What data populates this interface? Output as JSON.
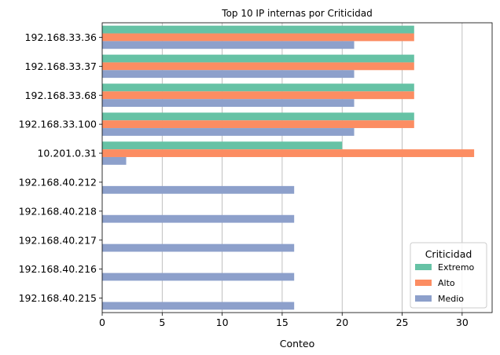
{
  "chart_data": {
    "type": "bar",
    "orientation": "horizontal",
    "title": "Top 10 IP internas por Criticidad",
    "xlabel": "Conteo",
    "ylabel": "",
    "xlim": [
      0,
      32.5
    ],
    "xticks": [
      0,
      5,
      10,
      15,
      20,
      25,
      30
    ],
    "grid": "vertical",
    "legend": {
      "title": "Criticidad",
      "placement": "bottom-right"
    },
    "categories": [
      "192.168.33.36",
      "192.168.33.37",
      "192.168.33.68",
      "192.168.33.100",
      "10.201.0.31",
      "192.168.40.212",
      "192.168.40.218",
      "192.168.40.217",
      "192.168.40.216",
      "192.168.40.215"
    ],
    "series": [
      {
        "name": "Extremo",
        "color": "#66c2a5",
        "values": [
          26,
          26,
          26,
          26,
          20,
          0,
          0,
          0,
          0,
          0
        ]
      },
      {
        "name": "Alto",
        "color": "#fc8d62",
        "values": [
          26,
          26,
          26,
          26,
          31,
          0,
          0,
          0,
          0,
          0
        ]
      },
      {
        "name": "Medio",
        "color": "#8da0cb",
        "values": [
          21,
          21,
          21,
          21,
          2,
          16,
          16,
          16,
          16,
          16
        ]
      }
    ]
  }
}
